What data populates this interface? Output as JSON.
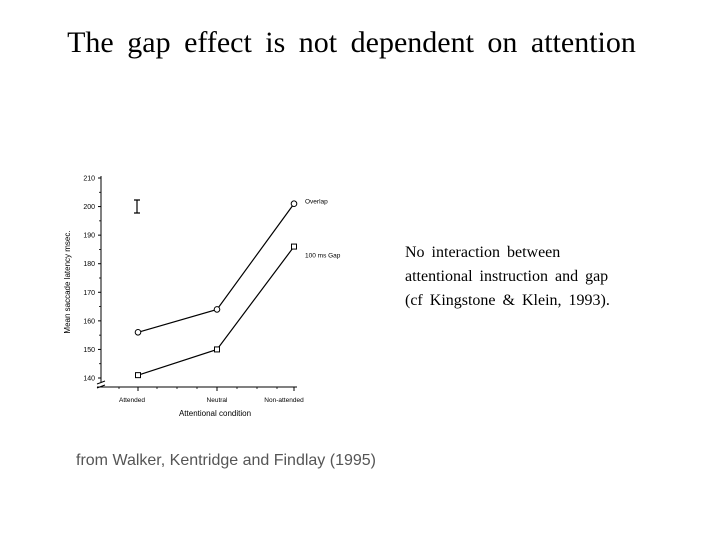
{
  "slide": {
    "title": "The  gap  effect  is  not  dependent  on  attention",
    "note_lines": [
      "No  interaction  between",
      "attentional  instruction  and  gap",
      "(cf  Kingstone & Klein, 1993)."
    ],
    "source": "from  Walker, Kentridge  and  Findlay (1995)"
  },
  "chart_data": {
    "type": "line",
    "categories": [
      "Attended",
      "Neutral",
      "Non-attended"
    ],
    "series": [
      {
        "name": "Overlap",
        "marker": "circle",
        "values": [
          156,
          164,
          201
        ]
      },
      {
        "name": "100 ms  Gap",
        "marker": "square",
        "values": [
          141,
          150,
          186
        ]
      }
    ],
    "xlabel": "Attentional condition",
    "ylabel": "Mean saccade latency msec.",
    "ylim": [
      140,
      210
    ],
    "yticks": [
      140,
      150,
      160,
      170,
      180,
      190,
      200,
      210
    ],
    "grid": false,
    "legend": "labels at line ends",
    "error_bar": "present (top-left)"
  }
}
